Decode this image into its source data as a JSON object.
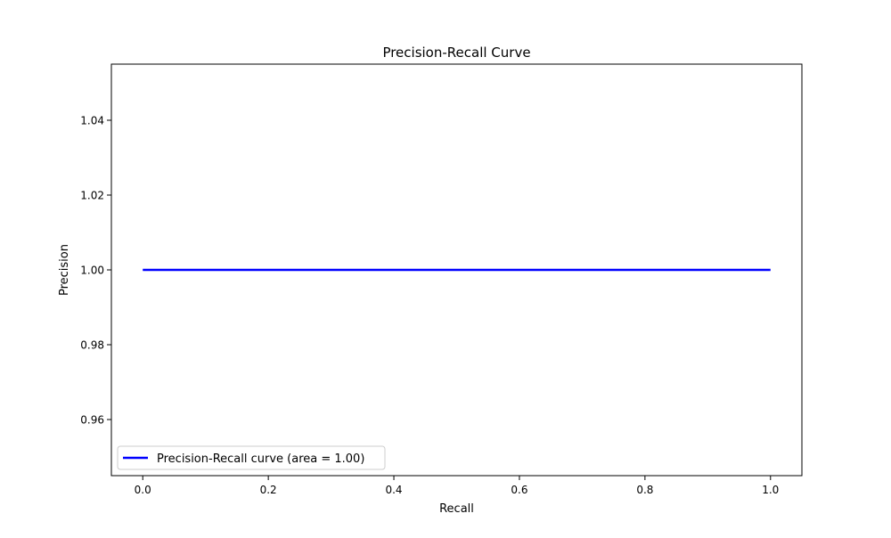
{
  "chart_data": {
    "type": "line",
    "title": "Precision-Recall Curve",
    "xlabel": "Recall",
    "ylabel": "Precision",
    "xlim": [
      -0.05,
      1.05
    ],
    "ylim": [
      0.945,
      1.055
    ],
    "xticks": [
      0.0,
      0.2,
      0.4,
      0.6,
      0.8,
      1.0
    ],
    "xtick_labels": [
      "0.0",
      "0.2",
      "0.4",
      "0.6",
      "0.8",
      "1.0"
    ],
    "yticks": [
      0.96,
      0.98,
      1.0,
      1.02,
      1.04
    ],
    "ytick_labels": [
      "0.96",
      "0.98",
      "1.00",
      "1.02",
      "1.04"
    ],
    "grid": false,
    "legend": {
      "placement": "lower-left"
    },
    "series": [
      {
        "name": "Precision-Recall curve (area = 1.00)",
        "color": "#0000ff",
        "x": [
          0.0,
          1.0
        ],
        "y": [
          1.0,
          1.0
        ]
      }
    ]
  }
}
